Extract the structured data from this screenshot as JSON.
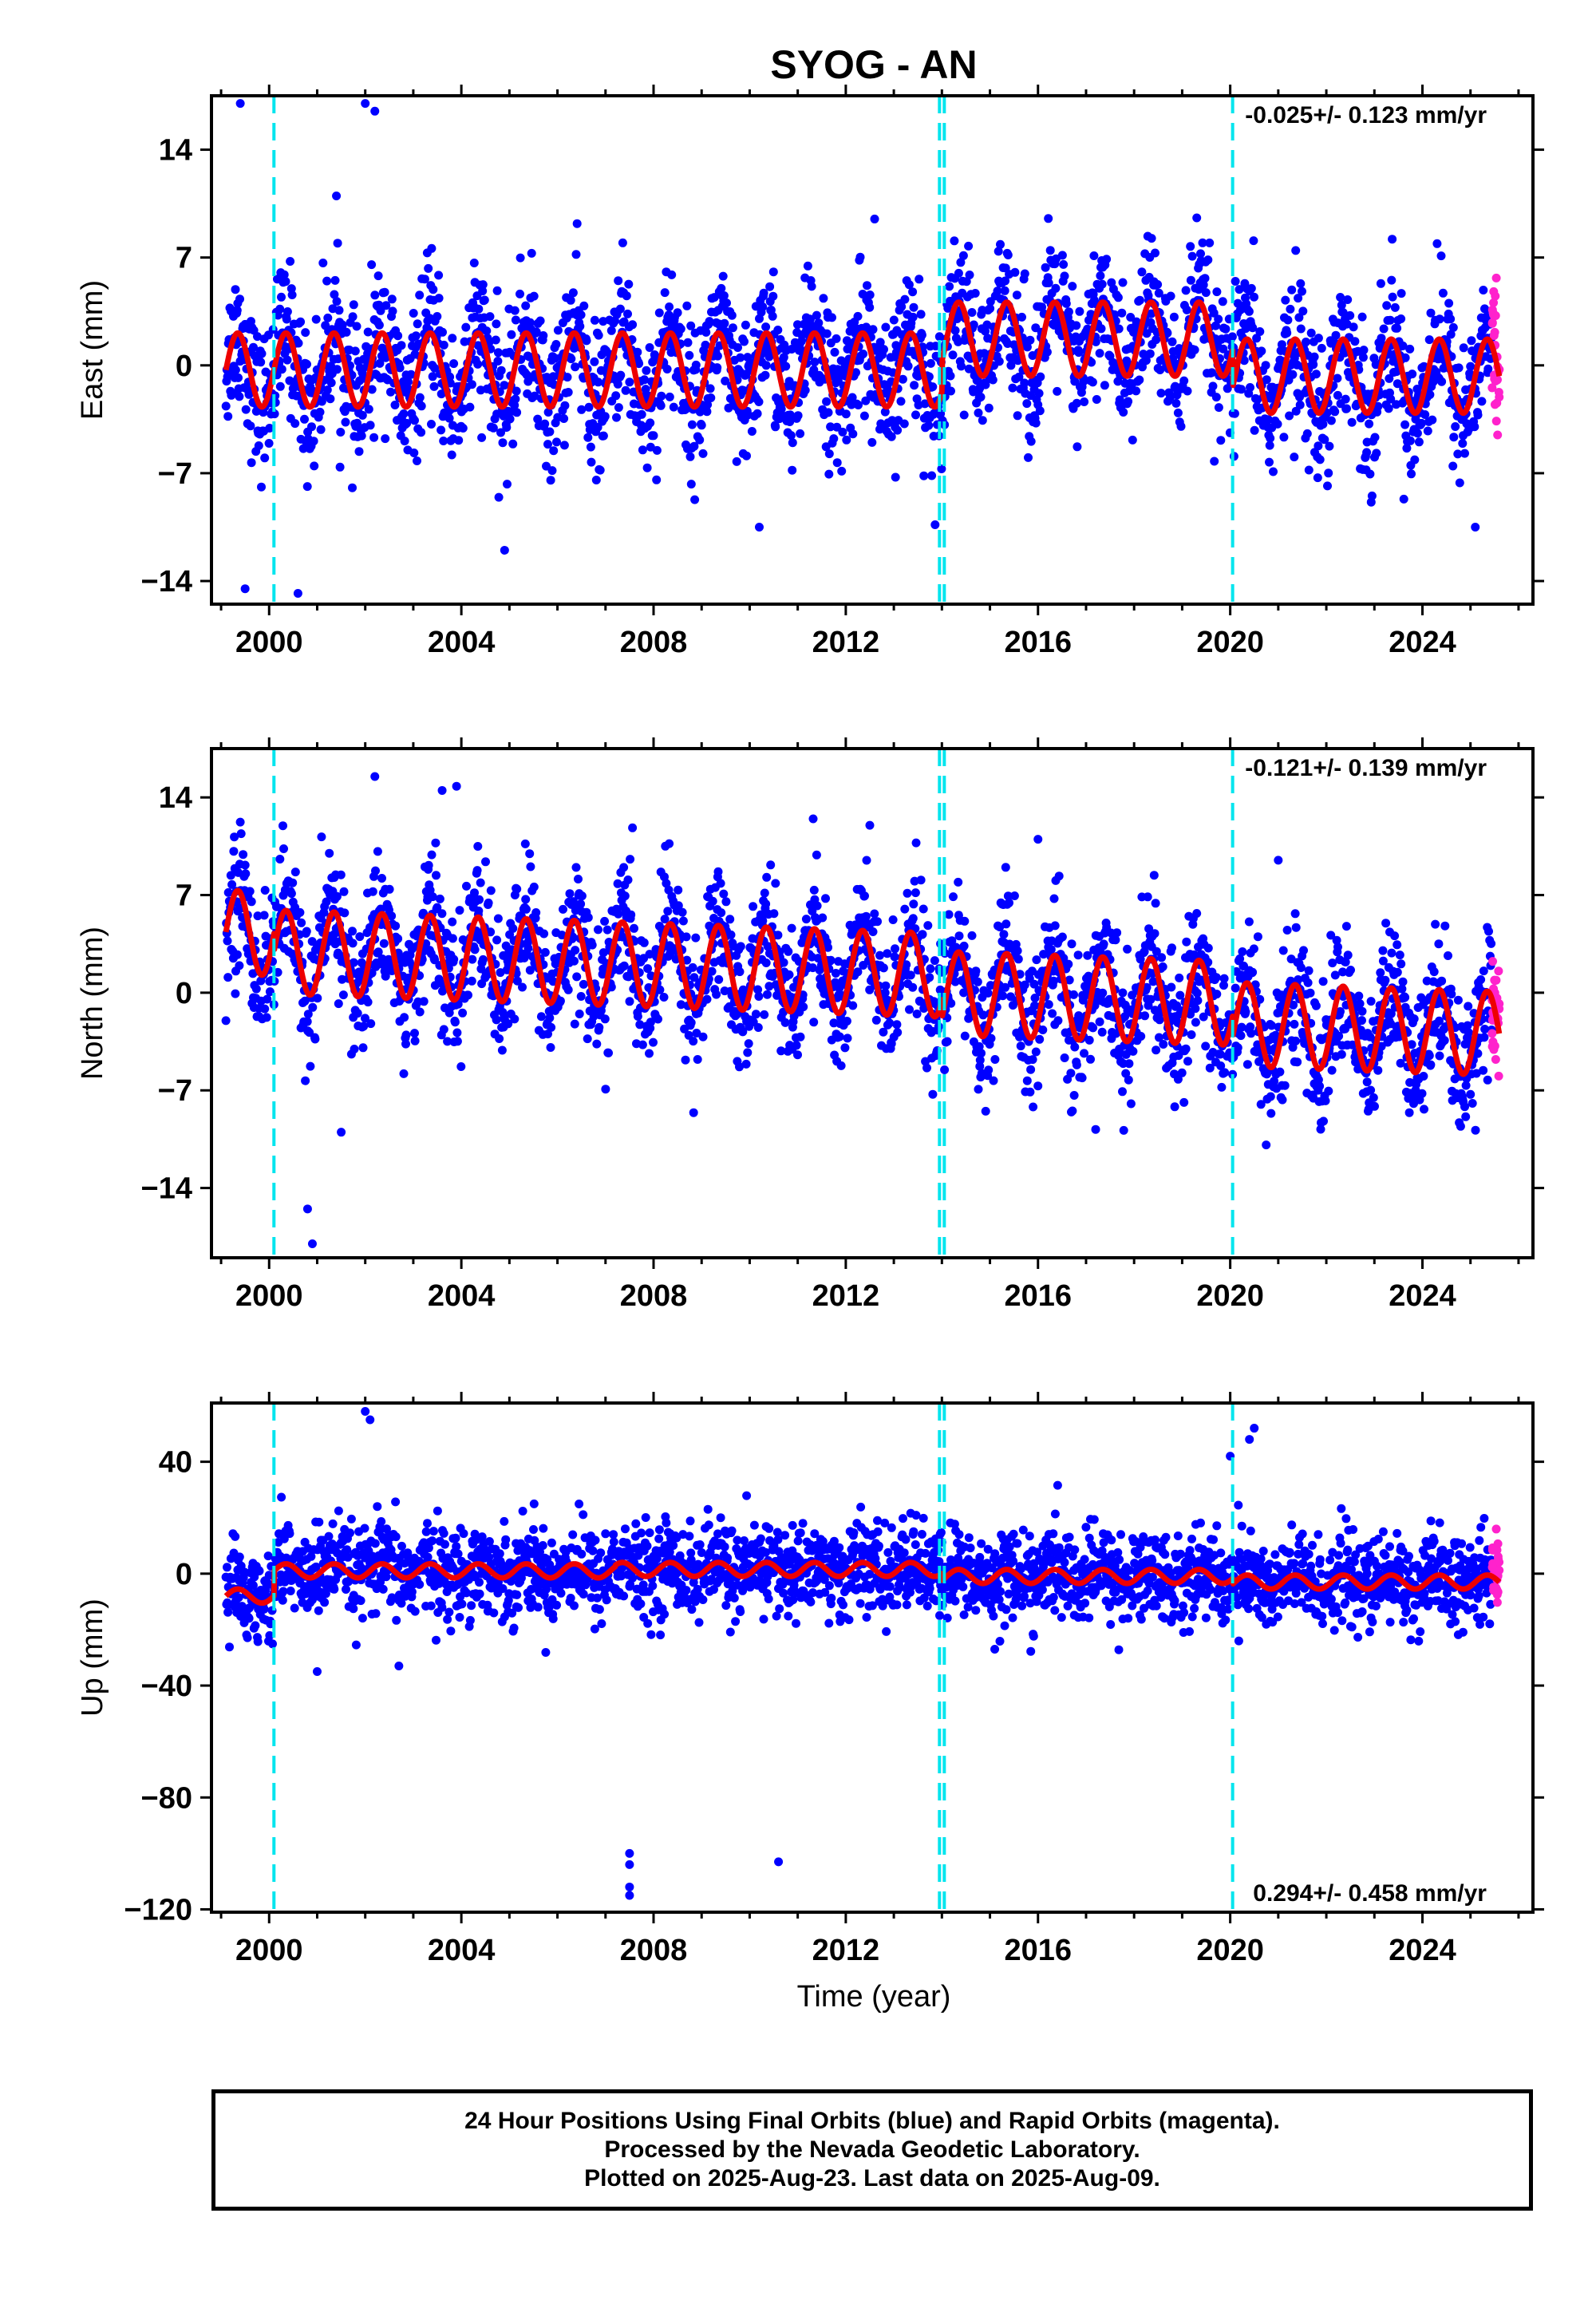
{
  "chart_data": {
    "type": "scatter",
    "title": "SYOG - AN",
    "xlabel": "Time (year)",
    "xlim": [
      1998.8,
      2026.3
    ],
    "xticks": [
      2000,
      2004,
      2008,
      2012,
      2016,
      2020,
      2024
    ],
    "colors": {
      "final": "#0000ff",
      "rapid": "#ff22cc",
      "model": "#ee0000",
      "steps": "#00e5ee"
    },
    "legend": [
      "24 Hour Positions Using Final Orbits (blue) and Rapid Orbits (magenta).",
      "Processed by the Nevada Geodetic Laboratory.",
      "Plotted on 2025-Aug-23. Last data on 2025-Aug-09."
    ],
    "steps": [
      2000.1,
      2013.95,
      2014.05,
      2020.05
    ],
    "data_range": [
      1999.1,
      2025.6
    ],
    "rapid_start": 2025.45,
    "panels": [
      {
        "id": "east",
        "ylabel": "East (mm)",
        "ylim": [
          -15.5,
          17.5
        ],
        "yticks": [
          14,
          7,
          0,
          -7,
          -14
        ],
        "rate_text": "-0.025+/- 0.123 mm/yr",
        "rate_position": "top-right",
        "scatter": 2.3,
        "amplitude": 2.4,
        "segments": [
          {
            "start": 1999.1,
            "end": 2014.0,
            "offset": -0.3
          },
          {
            "start": 2014.0,
            "end": 2020.05,
            "offset": 1.7
          },
          {
            "start": 2020.05,
            "end": 2025.6,
            "offset": -0.7
          }
        ],
        "outliers": [
          [
            1999.4,
            17.0
          ],
          [
            2002.0,
            17.0
          ],
          [
            2002.2,
            16.5
          ],
          [
            2001.4,
            11.0
          ],
          [
            2012.6,
            9.5
          ],
          [
            1999.5,
            -14.5
          ],
          [
            2004.9,
            -12.0
          ],
          [
            2010.2,
            -10.5
          ],
          [
            2025.1,
            -10.5
          ],
          [
            2000.6,
            -14.8
          ]
        ]
      },
      {
        "id": "north",
        "ylabel": "North (mm)",
        "ylim": [
          -19,
          17.5
        ],
        "yticks": [
          14,
          7,
          0,
          -7,
          -14
        ],
        "rate_text": "-0.121+/- 0.139 mm/yr",
        "rate_position": "top-right",
        "scatter": 2.4,
        "amplitude": 3.0,
        "segments": [
          {
            "start": 1999.1,
            "end": 2000.1,
            "offset": 2.8
          },
          {
            "start": 2000.1,
            "end": 2014.0,
            "offset": 1.5
          },
          {
            "start": 2014.0,
            "end": 2020.05,
            "offset": 0.2
          },
          {
            "start": 2020.05,
            "end": 2025.6,
            "offset": -1.3
          }
        ],
        "trend": -0.12,
        "outliers": [
          [
            2002.2,
            15.5
          ],
          [
            2003.6,
            14.5
          ],
          [
            2003.9,
            14.8
          ],
          [
            2000.8,
            -15.5
          ],
          [
            2000.9,
            -18.0
          ],
          [
            2001.5,
            -10.0
          ],
          [
            2017.2,
            -9.8
          ],
          [
            2021.0,
            9.5
          ],
          [
            2012.5,
            12.0
          ],
          [
            2016.0,
            11.0
          ]
        ]
      },
      {
        "id": "up",
        "ylabel": "Up (mm)",
        "ylim": [
          -121,
          61
        ],
        "yticks": [
          40,
          0,
          -40,
          -80,
          -120
        ],
        "rate_text": "0.294+/- 0.458 mm/yr",
        "rate_position": "bottom-right",
        "scatter": 8.0,
        "amplitude": 2.5,
        "segments": [
          {
            "start": 1999.1,
            "end": 2000.1,
            "offset": -8.0
          },
          {
            "start": 2000.1,
            "end": 2007.2,
            "offset": 1.0
          },
          {
            "start": 2007.2,
            "end": 2014.0,
            "offset": 1.5
          },
          {
            "start": 2014.0,
            "end": 2020.05,
            "offset": -1.0
          },
          {
            "start": 2020.05,
            "end": 2025.6,
            "offset": -3.0
          }
        ],
        "outliers": [
          [
            2002.0,
            58
          ],
          [
            2002.1,
            55
          ],
          [
            2020.0,
            42
          ],
          [
            2020.4,
            48
          ],
          [
            2020.5,
            52
          ],
          [
            2007.5,
            -100
          ],
          [
            2007.5,
            -104
          ],
          [
            2007.5,
            -112
          ],
          [
            2007.5,
            -115
          ],
          [
            2010.6,
            -103
          ],
          [
            2015.1,
            -27
          ],
          [
            2001.0,
            -35
          ],
          [
            2002.7,
            -33
          ]
        ]
      }
    ]
  }
}
